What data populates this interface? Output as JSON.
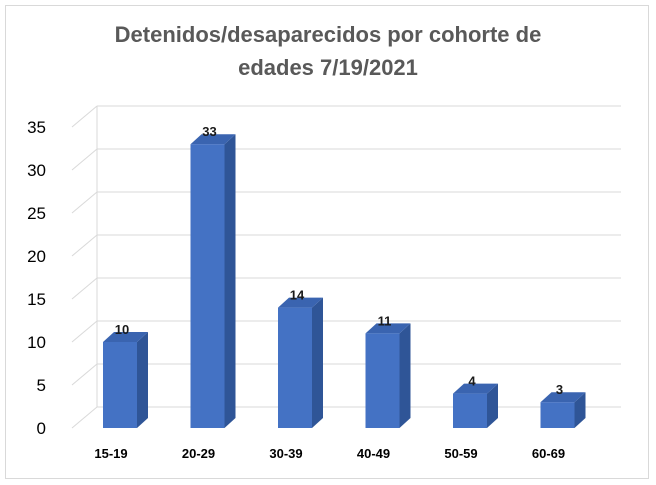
{
  "chart_data": {
    "type": "bar",
    "title": "Detenidos/desaparecidos por cohorte de\nedades 7/19/2021",
    "categories": [
      "15-19",
      "20-29",
      "30-39",
      "40-49",
      "50-59",
      "60-69"
    ],
    "values": [
      10,
      33,
      14,
      11,
      4,
      3
    ],
    "data_labels": [
      "10",
      "33",
      "14",
      "11",
      "4",
      "3"
    ],
    "yticks": [
      "0",
      "5",
      "10",
      "15",
      "20",
      "25",
      "30",
      "35"
    ],
    "ylim": [
      0,
      35
    ],
    "xlabel": "",
    "ylabel": "",
    "grid": true,
    "legend": "none",
    "style": "3d-column",
    "colors": {
      "bar_front": "#4472c4",
      "bar_side": "#2f5597",
      "bar_top": "#3a64b0",
      "grid": "#d9d9d9",
      "title": "#595959"
    }
  }
}
